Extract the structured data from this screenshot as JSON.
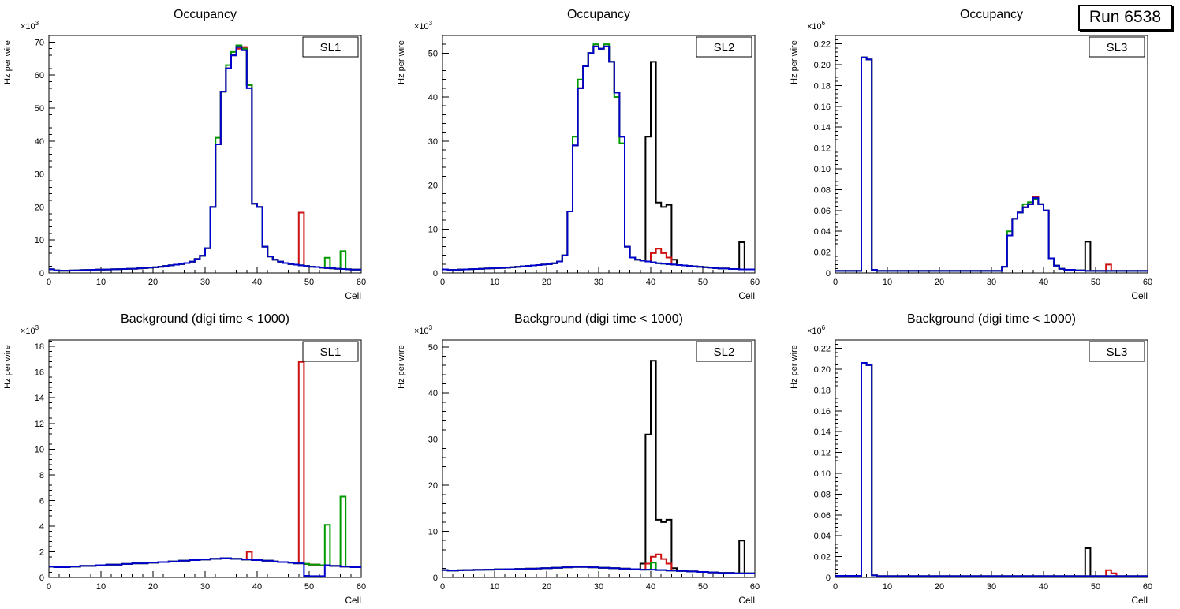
{
  "run_label": "Run 6538",
  "palette": {
    "black": "#000000",
    "red": "#cc1111",
    "green": "#009900",
    "blue": "#0000cc"
  },
  "chart_data": [
    {
      "type": "line",
      "subtype": "step-histogram",
      "title": "Occupancy",
      "corner_label": "SL1",
      "ylabel": "Hz per wire",
      "xlabel": "Cell",
      "scale_exp": 3,
      "xlim": [
        0,
        60
      ],
      "ylim": [
        0,
        72
      ],
      "xtick_step": 10,
      "ytick_step": 10,
      "base": [
        1.1,
        0.8,
        0.7,
        0.7,
        0.75,
        0.8,
        0.85,
        0.9,
        0.95,
        1.0,
        1.0,
        1.05,
        1.1,
        1.15,
        1.2,
        1.25,
        1.3,
        1.4,
        1.5,
        1.6,
        1.7,
        1.9,
        2.1,
        2.3,
        2.5,
        2.7,
        3.0,
        3.4,
        4.2,
        5.2,
        7.5,
        20,
        39,
        55,
        62,
        66,
        68.5,
        68,
        57,
        21,
        20,
        8,
        5,
        4,
        3.4,
        3.0,
        2.7,
        2.5,
        2.3,
        2.1,
        1.9,
        1.8,
        1.6,
        1.5,
        1.4,
        1.3,
        1.2,
        1.1,
        1.0,
        1.0
      ],
      "series": [
        {
          "name": "black",
          "overrides": {}
        },
        {
          "name": "red",
          "overrides": {
            "36": 68,
            "37": 68.5,
            "48": 18.3
          }
        },
        {
          "name": "green",
          "overrides": {
            "32": 41,
            "34": 63,
            "35": 67,
            "36": 69,
            "53": 4.6,
            "56": 6.6
          }
        },
        {
          "name": "blue",
          "overrides": {
            "37": 67.5,
            "38": 56
          }
        }
      ]
    },
    {
      "type": "line",
      "subtype": "step-histogram",
      "title": "Occupancy",
      "corner_label": "SL2",
      "ylabel": "Hz per wire",
      "xlabel": "Cell",
      "scale_exp": 3,
      "xlim": [
        0,
        60
      ],
      "ylim": [
        0,
        54
      ],
      "xtick_step": 10,
      "ytick_step": 10,
      "base": [
        0.8,
        0.7,
        0.7,
        0.75,
        0.8,
        0.85,
        0.9,
        0.95,
        1.0,
        1.05,
        1.1,
        1.15,
        1.2,
        1.3,
        1.4,
        1.5,
        1.6,
        1.7,
        1.8,
        1.9,
        2.0,
        2.2,
        2.6,
        4.0,
        14,
        29,
        42,
        47,
        50,
        51.5,
        51,
        51.5,
        48,
        41,
        31,
        6,
        3.5,
        3.0,
        2.8,
        2.6,
        2.4,
        2.2,
        2.1,
        2.0,
        1.9,
        1.8,
        1.7,
        1.6,
        1.5,
        1.4,
        1.3,
        1.2,
        1.1,
        1.0,
        1.0,
        0.9,
        0.9,
        0.8,
        0.8,
        0.8
      ],
      "series": [
        {
          "name": "black",
          "overrides": {
            "39": 31,
            "40": 48,
            "41": 16,
            "42": 15,
            "43": 15.5,
            "44": 3,
            "57": 7
          }
        },
        {
          "name": "red",
          "overrides": {
            "40": 4.5,
            "41": 5.5,
            "42": 4.5,
            "43": 3.5
          }
        },
        {
          "name": "green",
          "overrides": {
            "25": 31,
            "26": 44,
            "29": 52,
            "31": 52,
            "33": 40,
            "34": 29.5
          }
        },
        {
          "name": "blue",
          "overrides": {}
        }
      ]
    },
    {
      "type": "line",
      "subtype": "step-histogram",
      "title": "Occupancy",
      "corner_label": "SL3",
      "ylabel": "Hz per wire",
      "xlabel": "Cell",
      "scale_exp": 6,
      "xlim": [
        0,
        60
      ],
      "ylim": [
        0,
        0.228
      ],
      "xtick_step": 10,
      "ytick_step": 0.02,
      "base": [
        0.002,
        0.002,
        0.002,
        0.002,
        0.002,
        0.207,
        0.205,
        0.003,
        0.002,
        0.002,
        0.002,
        0.002,
        0.002,
        0.002,
        0.002,
        0.002,
        0.002,
        0.002,
        0.002,
        0.002,
        0.002,
        0.002,
        0.002,
        0.002,
        0.002,
        0.002,
        0.002,
        0.002,
        0.002,
        0.002,
        0.002,
        0.002,
        0.006,
        0.036,
        0.052,
        0.058,
        0.063,
        0.066,
        0.071,
        0.066,
        0.06,
        0.014,
        0.007,
        0.004,
        0.003,
        0.003,
        0.0025,
        0.0025,
        0.002,
        0.002,
        0.002,
        0.002,
        0.002,
        0.002,
        0.002,
        0.002,
        0.002,
        0.002,
        0.002,
        0.002
      ],
      "series": [
        {
          "name": "black",
          "overrides": {
            "48": 0.03
          }
        },
        {
          "name": "red",
          "overrides": {
            "38": 0.073,
            "52": 0.008
          }
        },
        {
          "name": "green",
          "overrides": {
            "33": 0.04,
            "36": 0.066,
            "37": 0.068
          }
        },
        {
          "name": "blue",
          "overrides": {
            "38": 0.072
          }
        }
      ]
    },
    {
      "type": "line",
      "subtype": "step-histogram",
      "title": "Background (digi time < 1000)",
      "corner_label": "SL1",
      "ylabel": "Hz per wire",
      "xlabel": "Cell",
      "scale_exp": 3,
      "xlim": [
        0,
        60
      ],
      "ylim": [
        0,
        18.5
      ],
      "xtick_step": 10,
      "ytick_step": 2,
      "base": [
        0.85,
        0.8,
        0.8,
        0.8,
        0.85,
        0.85,
        0.9,
        0.9,
        0.9,
        0.95,
        0.95,
        1.0,
        1.0,
        1.0,
        1.05,
        1.05,
        1.1,
        1.1,
        1.1,
        1.15,
        1.15,
        1.2,
        1.2,
        1.25,
        1.25,
        1.3,
        1.3,
        1.35,
        1.35,
        1.4,
        1.4,
        1.45,
        1.45,
        1.5,
        1.5,
        1.45,
        1.45,
        1.4,
        1.4,
        1.35,
        1.35,
        1.3,
        1.3,
        1.25,
        1.2,
        1.2,
        1.15,
        1.1,
        1.1,
        1.05,
        1.0,
        1.0,
        0.95,
        0.95,
        0.9,
        0.9,
        0.85,
        0.85,
        0.8,
        0.8
      ],
      "series": [
        {
          "name": "black",
          "overrides": {}
        },
        {
          "name": "red",
          "overrides": {
            "38": 2.0,
            "48": 16.8
          }
        },
        {
          "name": "green",
          "overrides": {
            "53": 4.1,
            "56": 6.3
          }
        },
        {
          "name": "blue",
          "overrides": {
            "49": 0.12,
            "50": 0.1,
            "51": 0.1,
            "52": 0.1
          }
        }
      ]
    },
    {
      "type": "line",
      "subtype": "step-histogram",
      "title": "Background (digi time < 1000)",
      "corner_label": "SL2",
      "ylabel": "Hz per wire",
      "xlabel": "Cell",
      "scale_exp": 3,
      "xlim": [
        0,
        60
      ],
      "ylim": [
        0,
        51.5
      ],
      "xtick_step": 10,
      "ytick_step": 10,
      "base": [
        1.6,
        1.5,
        1.5,
        1.55,
        1.6,
        1.6,
        1.65,
        1.65,
        1.7,
        1.7,
        1.75,
        1.75,
        1.8,
        1.8,
        1.85,
        1.85,
        1.9,
        1.9,
        1.95,
        2.0,
        2.0,
        2.1,
        2.1,
        2.2,
        2.2,
        2.3,
        2.3,
        2.3,
        2.2,
        2.2,
        2.1,
        2.1,
        2.0,
        2.0,
        1.9,
        1.9,
        1.8,
        1.8,
        1.7,
        1.7,
        1.7,
        1.6,
        1.6,
        1.5,
        1.5,
        1.4,
        1.4,
        1.3,
        1.3,
        1.2,
        1.2,
        1.1,
        1.1,
        1.0,
        1.0,
        1.0,
        0.9,
        0.9,
        0.9,
        0.9
      ],
      "series": [
        {
          "name": "black",
          "overrides": {
            "38": 3,
            "39": 31,
            "40": 47,
            "41": 12.5,
            "42": 12,
            "43": 12.5,
            "44": 2,
            "57": 8
          }
        },
        {
          "name": "red",
          "overrides": {
            "39": 3,
            "40": 4.5,
            "41": 5,
            "42": 4,
            "43": 3
          }
        },
        {
          "name": "green",
          "overrides": {
            "40": 3.2
          }
        },
        {
          "name": "blue",
          "overrides": {}
        }
      ]
    },
    {
      "type": "line",
      "subtype": "step-histogram",
      "title": "Background (digi time < 1000)",
      "corner_label": "SL3",
      "ylabel": "Hz per wire",
      "xlabel": "Cell",
      "scale_exp": 6,
      "xlim": [
        0,
        60
      ],
      "ylim": [
        0,
        0.228
      ],
      "xtick_step": 10,
      "ytick_step": 0.02,
      "base": [
        0.0015,
        0.0015,
        0.0015,
        0.0015,
        0.0015,
        0.206,
        0.204,
        0.002,
        0.0012,
        0.0012,
        0.0012,
        0.0012,
        0.0012,
        0.0012,
        0.0012,
        0.0012,
        0.0012,
        0.0012,
        0.0012,
        0.0012,
        0.0012,
        0.0012,
        0.0012,
        0.0012,
        0.0012,
        0.0012,
        0.0012,
        0.0012,
        0.0012,
        0.0012,
        0.0012,
        0.0012,
        0.0012,
        0.0012,
        0.0012,
        0.0012,
        0.0012,
        0.0012,
        0.0012,
        0.0012,
        0.0012,
        0.0012,
        0.0012,
        0.0012,
        0.0012,
        0.0012,
        0.0012,
        0.0012,
        0.0012,
        0.0012,
        0.0012,
        0.0012,
        0.0012,
        0.0012,
        0.0012,
        0.0012,
        0.0012,
        0.0012,
        0.0012,
        0.0012
      ],
      "series": [
        {
          "name": "black",
          "overrides": {
            "48": 0.028
          }
        },
        {
          "name": "red",
          "overrides": {
            "52": 0.007,
            "53": 0.004
          }
        },
        {
          "name": "green",
          "overrides": {}
        },
        {
          "name": "blue",
          "overrides": {}
        }
      ]
    }
  ]
}
